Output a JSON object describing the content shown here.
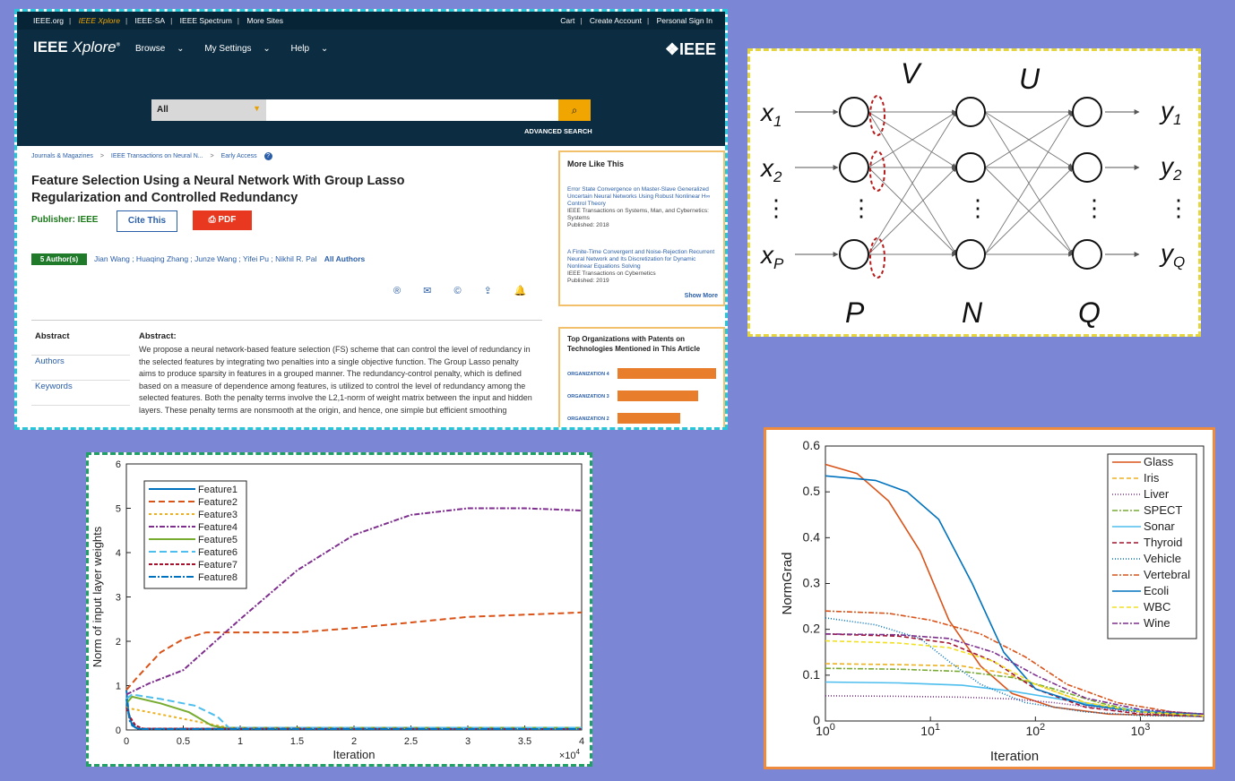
{
  "ieee": {
    "topbar_left": [
      "IEEE.org",
      "IEEE Xplore",
      "IEEE-SA",
      "IEEE Spectrum",
      "More Sites"
    ],
    "topbar_right": [
      "Cart",
      "Create Account",
      "Personal Sign In"
    ],
    "logo_bold": "IEEE",
    "logo_italic": "Xplore",
    "nav": [
      "Browse",
      "My Settings",
      "Help"
    ],
    "brand": "IEEE",
    "search_select": "All",
    "advanced_search": "ADVANCED SEARCH",
    "breadcrumb": [
      "Journals & Magazines",
      ">",
      "IEEE Transactions on Neural N...",
      ">",
      "Early Access"
    ],
    "title": "Feature Selection Using a Neural Network With Group Lasso Regularization and Controlled Redundancy",
    "publisher": "Publisher: IEEE",
    "cite_label": "Cite This",
    "pdf_label": "PDF",
    "authors_badge": "5 Author(s)",
    "authors": "Jian Wang ; Huaqing Zhang ; Junze Wang ; Yifei Pu ; Nikhil R. Pal",
    "all_authors": "All Authors",
    "side_nav": [
      "Abstract",
      "Authors",
      "Keywords"
    ],
    "abstract_heading": "Abstract:",
    "abstract_text": "We propose a neural network-based feature selection (FS) scheme that can control the level of redundancy in the selected features by integrating two penalties into a single objective function. The Group Lasso penalty aims to produce sparsity in features in a grouped manner. The redundancy-control penalty, which is defined based on a measure of dependence among features, is utilized to control the level of redundancy among the selected features. Both the penalty terms involve the L2,1-norm of weight matrix between the input and hidden layers. These penalty terms are nonsmooth at the origin, and hence, one simple but efficient smoothing",
    "more_like_this": {
      "heading": "More Like This",
      "items": [
        {
          "title": "Error State Convergence on Master-Slave Generalized Uncertain Neural Networks Using Robust Nonlinear H∞ Control Theory",
          "venue": "IEEE Transactions on Systems, Man, and Cybernetics: Systems",
          "published": "Published: 2018"
        },
        {
          "title": "A Finite-Time Convergent and Noise-Rejection Recurrent Neural Network and Its Discretization for Dynamic Nonlinear Equations Solving",
          "venue": "IEEE Transactions on Cybernetics",
          "published": "Published: 2019"
        }
      ],
      "show_more": "Show More"
    },
    "orgs": {
      "heading": "Top Organizations with Patents on Technologies Mentioned in This Article",
      "rows": [
        {
          "label": "ORGANIZATION 4",
          "value": 1.0
        },
        {
          "label": "ORGANIZATION 3",
          "value": 0.82
        },
        {
          "label": "ORGANIZATION 2",
          "value": 0.64
        }
      ]
    }
  },
  "network": {
    "inputs": [
      "x",
      "x",
      "x"
    ],
    "input_subs": [
      "1",
      "2",
      "P"
    ],
    "outputs": [
      "y",
      "y",
      "y"
    ],
    "output_subs": [
      "1",
      "2",
      "Q"
    ],
    "weight_labels": [
      "V",
      "U"
    ],
    "layer_labels": [
      "P",
      "N",
      "Q"
    ],
    "dots": "⋮"
  },
  "chart_data": [
    {
      "type": "line",
      "xlabel": "Iteration",
      "ylabel": "Norm of input layer weights",
      "x_multiplier": "×10",
      "x_multiplier_exp": "4",
      "xlim": [
        0,
        4
      ],
      "ylim": [
        0,
        6
      ],
      "xticks": [
        "0",
        "0.5",
        "1",
        "1.5",
        "2",
        "2.5",
        "3",
        "3.5",
        "4"
      ],
      "yticks": [
        "0",
        "1",
        "2",
        "3",
        "4",
        "5",
        "6"
      ],
      "legend_position": "top-left",
      "series": [
        {
          "name": "Feature1",
          "color": "#0072bd",
          "dash": "",
          "x": [
            0,
            0.02,
            0.05,
            0.1,
            4
          ],
          "y": [
            0.9,
            0.4,
            0.1,
            0.03,
            0.02
          ]
        },
        {
          "name": "Feature2",
          "color": "#d95319",
          "dash": "7,4",
          "x": [
            0,
            0.1,
            0.3,
            0.5,
            0.7,
            0.9,
            1.5,
            2,
            3,
            4
          ],
          "y": [
            0.9,
            1.2,
            1.75,
            2.05,
            2.2,
            2.2,
            2.2,
            2.3,
            2.55,
            2.65
          ]
        },
        {
          "name": "Feature3",
          "color": "#edb120",
          "dash": "3,3",
          "x": [
            0,
            0.1,
            0.4,
            0.7,
            0.9,
            4
          ],
          "y": [
            0.5,
            0.45,
            0.3,
            0.15,
            0.05,
            0.03
          ]
        },
        {
          "name": "Feature4",
          "color": "#7e2f8e",
          "dash": "6,2,2,2",
          "x": [
            0,
            0.2,
            0.5,
            1,
            1.5,
            2,
            2.5,
            3,
            3.5,
            4
          ],
          "y": [
            0.8,
            1.05,
            1.35,
            2.5,
            3.6,
            4.4,
            4.85,
            5.0,
            5.0,
            4.95
          ]
        },
        {
          "name": "Feature5",
          "color": "#77ac30",
          "dash": "",
          "x": [
            0,
            0.05,
            0.3,
            0.55,
            0.75,
            0.85,
            4
          ],
          "y": [
            0.6,
            0.75,
            0.6,
            0.4,
            0.1,
            0.05,
            0.05
          ]
        },
        {
          "name": "Feature6",
          "color": "#4dbeee",
          "dash": "8,4",
          "x": [
            0,
            0.05,
            0.3,
            0.6,
            0.8,
            0.9,
            4
          ],
          "y": [
            0.7,
            0.8,
            0.7,
            0.55,
            0.3,
            0.05,
            0.05
          ]
        },
        {
          "name": "Feature7",
          "color": "#a2142f",
          "dash": "4,2",
          "x": [
            0,
            0.03,
            0.08,
            0.15,
            4
          ],
          "y": [
            0.5,
            0.3,
            0.1,
            0.03,
            0.02
          ]
        },
        {
          "name": "Feature8",
          "color": "#0072bd",
          "dash": "8,2,2,2",
          "x": [
            0,
            0.03,
            0.08,
            0.12,
            4
          ],
          "y": [
            0.7,
            0.2,
            0.05,
            0.02,
            0.02
          ]
        }
      ]
    },
    {
      "type": "line",
      "xscale": "log",
      "xlabel": "Iteration",
      "ylabel": "NormGrad",
      "xlim": [
        1,
        4000
      ],
      "ylim": [
        0,
        0.6
      ],
      "xticks": [
        "10",
        "10",
        "10",
        "10"
      ],
      "xtick_exps": [
        "0",
        "1",
        "2",
        "3"
      ],
      "yticks": [
        "0",
        "0.1",
        "0.2",
        "0.3",
        "0.4",
        "0.5",
        "0.6"
      ],
      "legend_position": "top-right",
      "series": [
        {
          "name": "Glass",
          "color": "#d95319",
          "dash": "",
          "x": [
            1,
            2,
            4,
            8,
            15,
            30,
            60,
            150,
            500,
            4000
          ],
          "y": [
            0.56,
            0.54,
            0.48,
            0.37,
            0.22,
            0.12,
            0.06,
            0.03,
            0.015,
            0.01
          ]
        },
        {
          "name": "Iris",
          "color": "#edb120",
          "dash": "5,3",
          "x": [
            1,
            5,
            20,
            50,
            100,
            300,
            1000,
            4000
          ],
          "y": [
            0.125,
            0.123,
            0.12,
            0.105,
            0.08,
            0.04,
            0.02,
            0.01
          ]
        },
        {
          "name": "Liver",
          "color": "#7e2f8e",
          "dash": "1,2",
          "x": [
            1,
            5,
            20,
            60,
            150,
            500,
            1500,
            4000
          ],
          "y": [
            0.055,
            0.054,
            0.052,
            0.048,
            0.04,
            0.025,
            0.015,
            0.01
          ]
        },
        {
          "name": "SPECT",
          "color": "#77ac30",
          "dash": "6,2,2,2",
          "x": [
            1,
            5,
            20,
            60,
            150,
            400,
            1000,
            4000
          ],
          "y": [
            0.115,
            0.113,
            0.108,
            0.095,
            0.07,
            0.04,
            0.02,
            0.01
          ]
        },
        {
          "name": "Sonar",
          "color": "#4dbeee",
          "dash": "",
          "x": [
            1,
            5,
            20,
            60,
            150,
            500,
            1500,
            4000
          ],
          "y": [
            0.085,
            0.083,
            0.078,
            0.065,
            0.05,
            0.03,
            0.02,
            0.015
          ]
        },
        {
          "name": "Thyroid",
          "color": "#a2142f",
          "dash": "5,3",
          "x": [
            1,
            5,
            15,
            40,
            100,
            300,
            1000,
            4000
          ],
          "y": [
            0.19,
            0.185,
            0.17,
            0.13,
            0.07,
            0.03,
            0.015,
            0.01
          ]
        },
        {
          "name": "Vehicle",
          "color": "#0072bd",
          "dash": "1,2",
          "x": [
            1,
            3,
            8,
            15,
            30,
            80,
            300,
            1000,
            4000
          ],
          "y": [
            0.225,
            0.21,
            0.18,
            0.13,
            0.08,
            0.04,
            0.02,
            0.012,
            0.01
          ]
        },
        {
          "name": "Vertebral",
          "color": "#d95319",
          "dash": "6,2,2,2",
          "x": [
            1,
            4,
            10,
            30,
            80,
            200,
            600,
            2000,
            4000
          ],
          "y": [
            0.24,
            0.235,
            0.22,
            0.19,
            0.14,
            0.08,
            0.04,
            0.02,
            0.015
          ]
        },
        {
          "name": "Ecoli",
          "color": "#0072bd",
          "dash": "",
          "x": [
            1,
            3,
            6,
            12,
            25,
            50,
            100,
            300,
            1000,
            4000
          ],
          "y": [
            0.535,
            0.525,
            0.5,
            0.44,
            0.3,
            0.15,
            0.07,
            0.035,
            0.02,
            0.015
          ]
        },
        {
          "name": "WBC",
          "color": "#f0e020",
          "dash": "5,3",
          "x": [
            1,
            5,
            15,
            40,
            100,
            300,
            1000,
            4000
          ],
          "y": [
            0.175,
            0.17,
            0.16,
            0.13,
            0.08,
            0.04,
            0.02,
            0.012
          ]
        },
        {
          "name": "Wine",
          "color": "#7e2f8e",
          "dash": "6,2,2,2",
          "x": [
            1,
            5,
            15,
            40,
            100,
            300,
            1000,
            4000
          ],
          "y": [
            0.19,
            0.188,
            0.18,
            0.15,
            0.1,
            0.05,
            0.025,
            0.015
          ]
        }
      ]
    }
  ]
}
